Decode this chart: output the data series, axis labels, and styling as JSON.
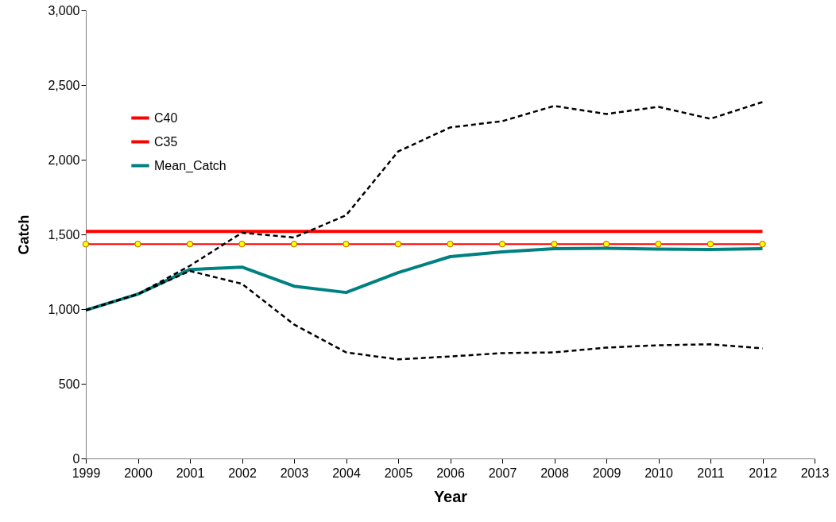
{
  "chart_data": {
    "type": "line",
    "xlabel": "Year",
    "ylabel": "Catch",
    "x": [
      1999,
      2000,
      2001,
      2002,
      2003,
      2004,
      2005,
      2006,
      2007,
      2008,
      2009,
      2010,
      2011,
      2012
    ],
    "series": [
      {
        "name": "C40",
        "color": "#ff0000",
        "marker": "circle",
        "values": [
          1435,
          1435,
          1435,
          1435,
          1435,
          1435,
          1435,
          1435,
          1435,
          1435,
          1435,
          1435,
          1435,
          1435
        ]
      },
      {
        "name": "C35",
        "color": "#ff0000",
        "values": [
          1520,
          1520,
          1520,
          1520,
          1520,
          1520,
          1520,
          1520,
          1520,
          1520,
          1520,
          1520,
          1520,
          1520
        ]
      },
      {
        "name": "Mean_Catch",
        "color": "#008080",
        "values": [
          993,
          1100,
          1265,
          1281,
          1153,
          1111,
          1244,
          1351,
          1383,
          1404,
          1407,
          1402,
          1399,
          1404
        ]
      },
      {
        "color": "#000000",
        "line_style": "dashed",
        "values": [
          993,
          1100,
          1290,
          1511,
          1479,
          1628,
          2055,
          2216,
          2258,
          2360,
          2306,
          2354,
          2274,
          2386
        ]
      },
      {
        "color": "#000000",
        "line_style": "dashed",
        "values": [
          993,
          1100,
          1255,
          1169,
          897,
          710,
          663,
          683,
          705,
          710,
          742,
          758,
          764,
          737
        ]
      }
    ],
    "xlim": [
      1999,
      2013
    ],
    "xticks": [
      1999,
      2000,
      2001,
      2002,
      2003,
      2004,
      2005,
      2006,
      2007,
      2008,
      2009,
      2010,
      2011,
      2012,
      2013
    ],
    "ylim": [
      0,
      3000
    ],
    "yticks": [
      0,
      500,
      {
        "value": 1000,
        "label": "1,000"
      },
      {
        "value": 1500,
        "label": "1,500"
      },
      {
        "value": 2000,
        "label": "2,000"
      },
      {
        "value": 2500,
        "label": "2,500"
      },
      {
        "value": 3000,
        "label": "3,000"
      }
    ],
    "grid": false,
    "legend": "top left"
  }
}
